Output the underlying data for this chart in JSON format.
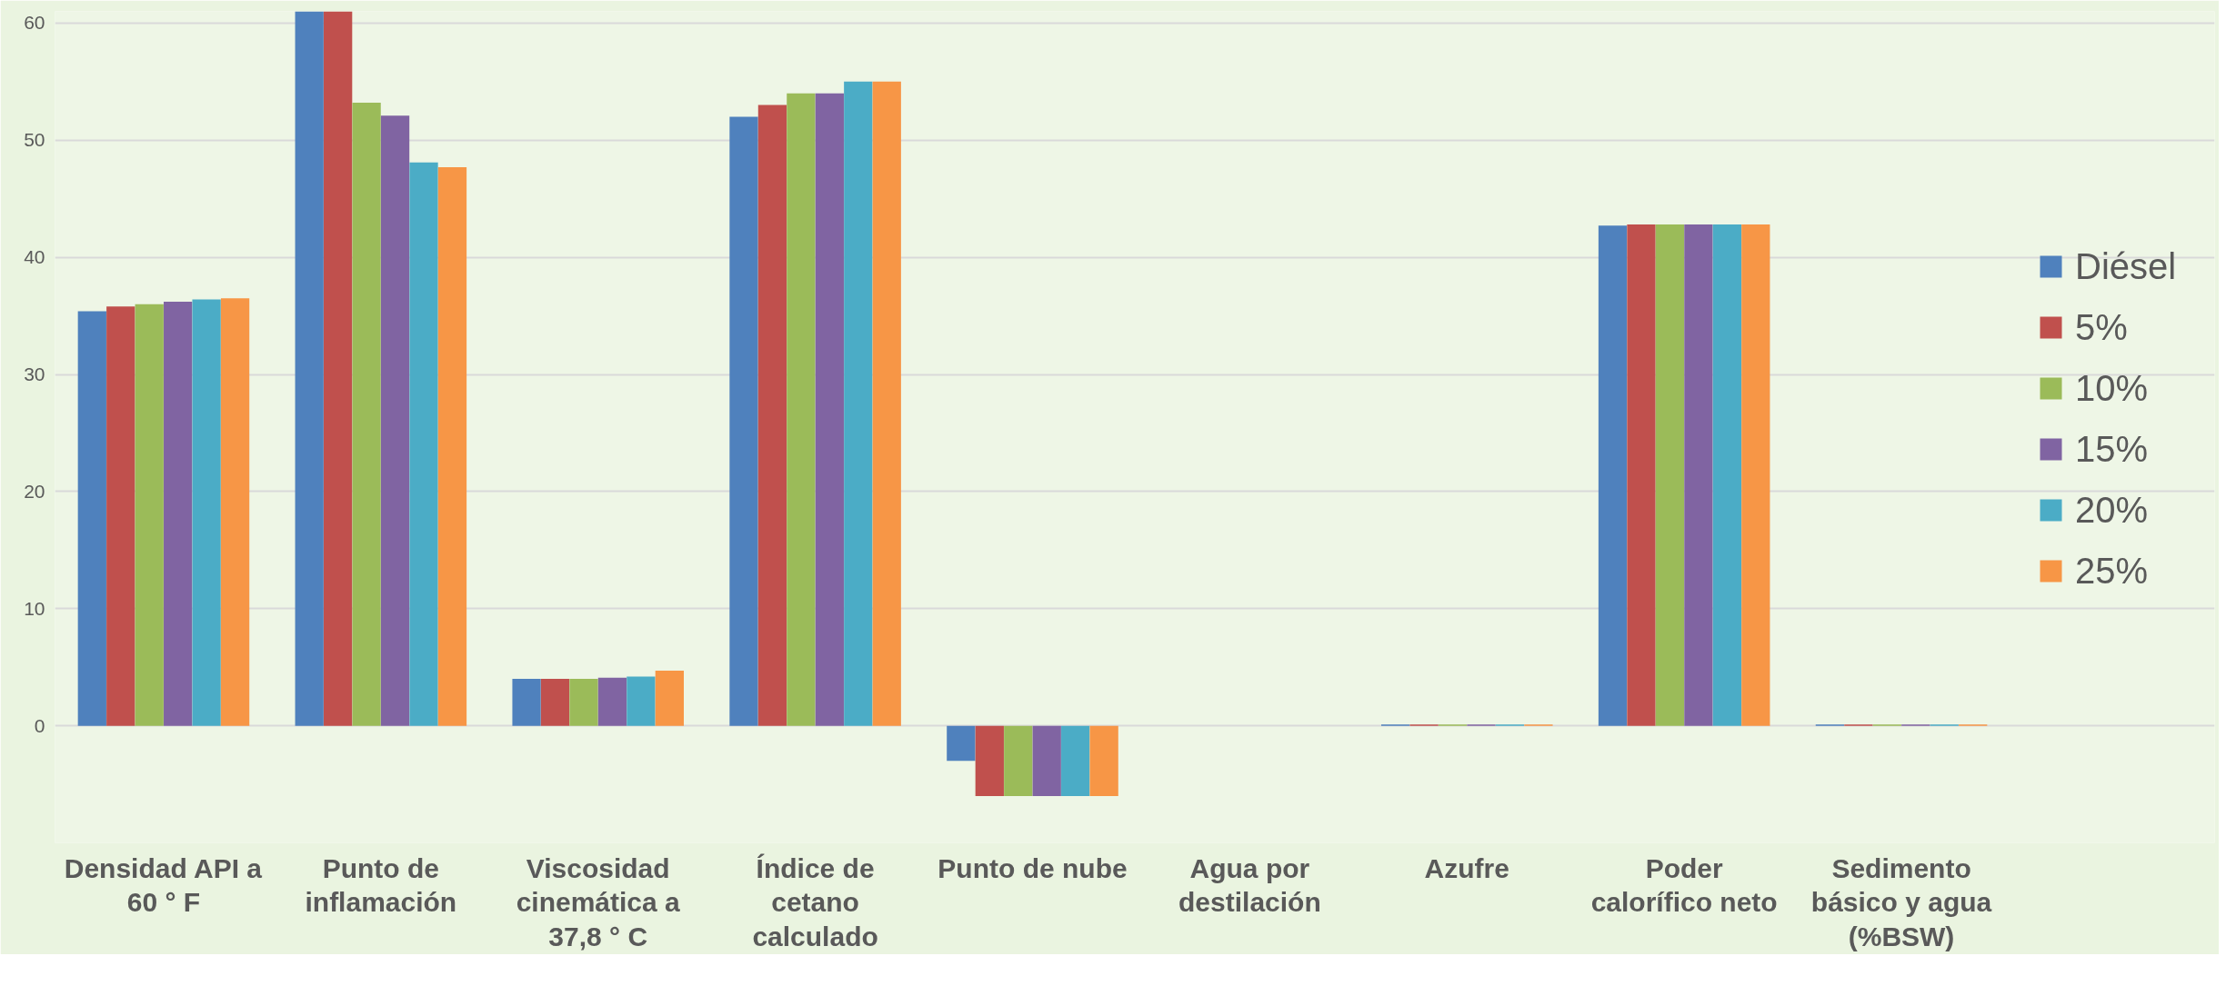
{
  "chart_data": {
    "type": "bar",
    "categories": [
      "Densidad API a 60 ° F",
      "Punto de inflamación",
      "Viscosidad cinemática a 37,8 ° C",
      "Índice de cetano calculado",
      "Punto de nube",
      "Agua por destilación",
      "Azufre",
      "Poder calorífico neto",
      "Sedimento básico y agua (%BSW)"
    ],
    "series": [
      {
        "name": "Diésel",
        "color": "#4f81bd",
        "values": [
          35.4,
          61,
          4.0,
          52,
          -3,
          null,
          0.1,
          42.7,
          0.1
        ]
      },
      {
        "name": "5%",
        "color": "#c0504d",
        "values": [
          35.8,
          61,
          4.0,
          53,
          -6,
          null,
          0.1,
          42.8,
          0.1
        ]
      },
      {
        "name": "10%",
        "color": "#9bbb59",
        "values": [
          36.0,
          53.2,
          4.0,
          54,
          -6,
          null,
          0.1,
          42.8,
          0.1
        ]
      },
      {
        "name": "15%",
        "color": "#8064a2",
        "values": [
          36.2,
          52.1,
          4.1,
          54,
          -6,
          null,
          0.1,
          42.8,
          0.1
        ]
      },
      {
        "name": "20%",
        "color": "#4bacc6",
        "values": [
          36.4,
          48.1,
          4.2,
          55,
          -6,
          null,
          0.1,
          42.8,
          0.1
        ]
      },
      {
        "name": "25%",
        "color": "#f79646",
        "values": [
          36.5,
          47.7,
          4.7,
          55,
          -6,
          null,
          0.1,
          42.8,
          0.1
        ]
      }
    ],
    "ylim": [
      -10,
      61
    ],
    "yticks": [
      {
        "value": -10,
        "label": null
      },
      0,
      10,
      20,
      30,
      40,
      50,
      60
    ],
    "grid": "y",
    "legend": "right"
  }
}
